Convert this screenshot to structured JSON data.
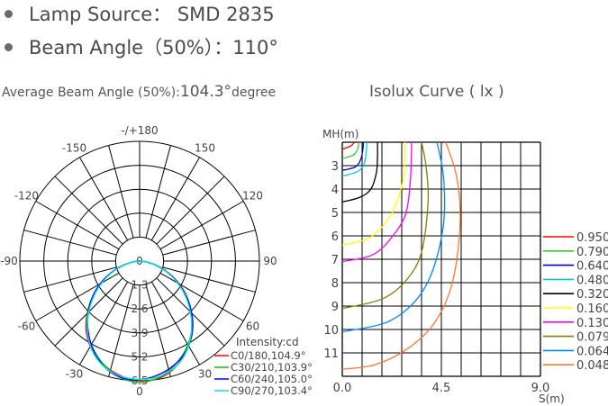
{
  "specs": {
    "lamp_source": "Lamp Source： SMD 2835",
    "beam_angle": "Beam Angle（50%）：110°"
  },
  "average": {
    "label": "Average Beam Angle (50%):",
    "value": "104.3°",
    "unit": "degree"
  },
  "isolux_title": "Isolux Curve ( lx )",
  "chart_data": [
    {
      "type": "polar",
      "angle_labels": [
        {
          "angle": 0,
          "text": "0"
        },
        {
          "angle": 30,
          "text": "30"
        },
        {
          "angle": 60,
          "text": "60"
        },
        {
          "angle": 90,
          "text": "90"
        },
        {
          "angle": 120,
          "text": "120"
        },
        {
          "angle": 150,
          "text": "150"
        },
        {
          "angle": 180,
          "text": "-/+180"
        },
        {
          "angle": -150,
          "text": "-150"
        },
        {
          "angle": -120,
          "text": "-120"
        },
        {
          "angle": -90,
          "text": "-90"
        },
        {
          "angle": -60,
          "text": "-60"
        },
        {
          "angle": -30,
          "text": "-30"
        }
      ],
      "radial_labels": [
        "0",
        "1.3",
        "2.6",
        "3.9",
        "5.2",
        "6.5"
      ],
      "radial_max": 6.5,
      "legend_title": "Intensity:cd",
      "series": [
        {
          "name": "C0/180,104.9°",
          "color": "#ff0000",
          "peak": 6.5,
          "beam_angle": 104.9
        },
        {
          "name": "C30/210,103.9°",
          "color": "#00cc00",
          "peak": 6.5,
          "beam_angle": 103.9
        },
        {
          "name": "C60/240,105.0°",
          "color": "#0000ff",
          "peak": 6.45,
          "beam_angle": 105.0
        },
        {
          "name": "C90/270,103.4°",
          "color": "#00e5e5",
          "peak": 6.5,
          "beam_angle": 103.4
        }
      ]
    },
    {
      "type": "isolux",
      "ylabel": "MH(m)",
      "xlabel": "S(m)",
      "x_ticks": [
        "0.0",
        "4.5",
        "9.0"
      ],
      "x_range": [
        0,
        9
      ],
      "y_ticks": [
        "3",
        "4",
        "5",
        "6",
        "7",
        "8",
        "9",
        "10",
        "11"
      ],
      "y_range": [
        2,
        12
      ],
      "series": [
        {
          "name": "0.950",
          "color": "#ff0000",
          "points": [
            [
              0,
              2.3
            ],
            [
              0.4,
              2.15
            ],
            [
              0.55,
              2.0
            ]
          ]
        },
        {
          "name": "0.790",
          "color": "#33cc33",
          "points": [
            [
              0,
              2.7
            ],
            [
              0.5,
              2.55
            ],
            [
              0.7,
              2.3
            ],
            [
              0.75,
              2.0
            ]
          ]
        },
        {
          "name": "0.640",
          "color": "#0000cc",
          "points": [
            [
              0,
              3.2
            ],
            [
              0.6,
              3.05
            ],
            [
              0.85,
              2.7
            ],
            [
              0.95,
              2.2
            ],
            [
              0.95,
              2.0
            ]
          ]
        },
        {
          "name": "0.480",
          "color": "#00cccc",
          "points": [
            [
              0,
              3.45
            ],
            [
              0.7,
              3.25
            ],
            [
              1.0,
              2.9
            ],
            [
              1.1,
              2.3
            ],
            [
              1.1,
              2.0
            ]
          ]
        },
        {
          "name": "0.320",
          "color": "#000000",
          "points": [
            [
              0,
              4.55
            ],
            [
              0.8,
              4.35
            ],
            [
              1.3,
              4.0
            ],
            [
              1.55,
              3.3
            ],
            [
              1.6,
              2.6
            ],
            [
              1.6,
              2.0
            ]
          ]
        },
        {
          "name": "0.160",
          "color": "#ffff00",
          "points": [
            [
              0,
              6.4
            ],
            [
              1.2,
              6.1
            ],
            [
              2.0,
              5.4
            ],
            [
              2.5,
              4.5
            ],
            [
              2.8,
              3.4
            ],
            [
              2.85,
              2.0
            ]
          ]
        },
        {
          "name": "0.130",
          "color": "#ff00ff",
          "points": [
            [
              0,
              7.1
            ],
            [
              1.4,
              6.8
            ],
            [
              2.3,
              6.0
            ],
            [
              2.9,
              5.0
            ],
            [
              3.1,
              3.5
            ],
            [
              3.15,
              2.0
            ]
          ]
        },
        {
          "name": "0.079",
          "color": "#808000",
          "points": [
            [
              0,
              9.1
            ],
            [
              1.8,
              8.7
            ],
            [
              2.9,
              7.9
            ],
            [
              3.6,
              6.7
            ],
            [
              3.9,
              4.5
            ],
            [
              3.8,
              3.0
            ],
            [
              3.6,
              2.0
            ]
          ]
        },
        {
          "name": "0.064",
          "color": "#0088ff",
          "points": [
            [
              0,
              10.1
            ],
            [
              2.0,
              9.7
            ],
            [
              3.3,
              8.8
            ],
            [
              4.1,
              7.5
            ],
            [
              4.6,
              5.5
            ],
            [
              4.6,
              3.5
            ],
            [
              4.3,
              2.0
            ]
          ]
        },
        {
          "name": "0.048",
          "color": "#ff7733",
          "points": [
            [
              0,
              11.7
            ],
            [
              1.5,
              11.5
            ],
            [
              3.0,
              10.8
            ],
            [
              4.2,
              9.7
            ],
            [
              5.0,
              8.0
            ],
            [
              5.35,
              5.5
            ],
            [
              5.2,
              3.5
            ],
            [
              4.7,
              2.0
            ]
          ]
        }
      ]
    }
  ]
}
